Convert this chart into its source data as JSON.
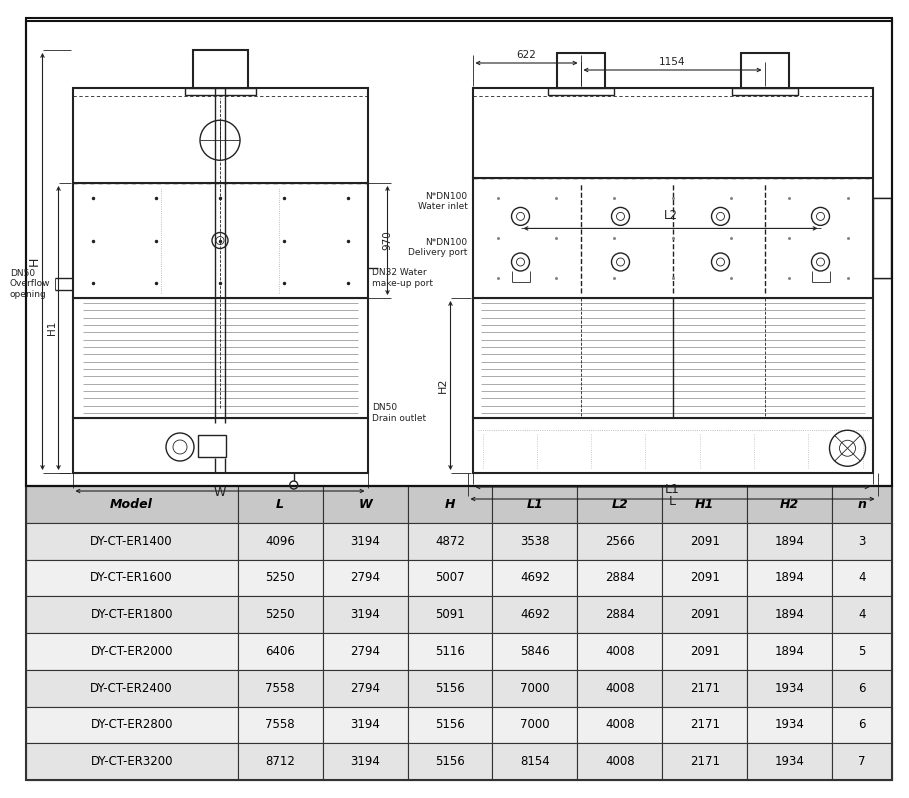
{
  "table_headers": [
    "Model",
    "L",
    "W",
    "H",
    "L1",
    "L2",
    "H1",
    "H2",
    "n"
  ],
  "table_rows": [
    [
      "DY-CT-ER1400",
      "4096",
      "3194",
      "4872",
      "3538",
      "2566",
      "2091",
      "1894",
      "3"
    ],
    [
      "DY-CT-ER1600",
      "5250",
      "2794",
      "5007",
      "4692",
      "2884",
      "2091",
      "1894",
      "4"
    ],
    [
      "DY-CT-ER1800",
      "5250",
      "3194",
      "5091",
      "4692",
      "2884",
      "2091",
      "1894",
      "4"
    ],
    [
      "DY-CT-ER2000",
      "6406",
      "2794",
      "5116",
      "5846",
      "4008",
      "2091",
      "1894",
      "5"
    ],
    [
      "DY-CT-ER2400",
      "7558",
      "2794",
      "5156",
      "7000",
      "4008",
      "2171",
      "1934",
      "6"
    ],
    [
      "DY-CT-ER2800",
      "7558",
      "3194",
      "5156",
      "7000",
      "4008",
      "2171",
      "1934",
      "6"
    ],
    [
      "DY-CT-ER3200",
      "8712",
      "3194",
      "5156",
      "8154",
      "4008",
      "2171",
      "1934",
      "7"
    ]
  ],
  "header_bg": "#c8c8c8",
  "row_bg_odd": "#e4e4e4",
  "row_bg_even": "#f0f0f0",
  "border_color": "#333333",
  "lc": "#222222",
  "label_970": "970",
  "label_622": "622",
  "label_1154": "1154",
  "label_H": "H",
  "label_H1": "H1",
  "label_H2": "H2",
  "label_W": "W",
  "label_L": "L",
  "label_L1": "L1",
  "label_L2": "L2",
  "label_DN50_overflow": "DN50\nOverflow\nopening",
  "label_DN32_water": "DN32 Water\nmake-up port",
  "label_DN50_drain": "DN50\nDrain outlet",
  "label_N_DN100_water": "N*DN100\nWater inlet",
  "label_N_DN100_delivery": "N*DN100\nDelivery port"
}
